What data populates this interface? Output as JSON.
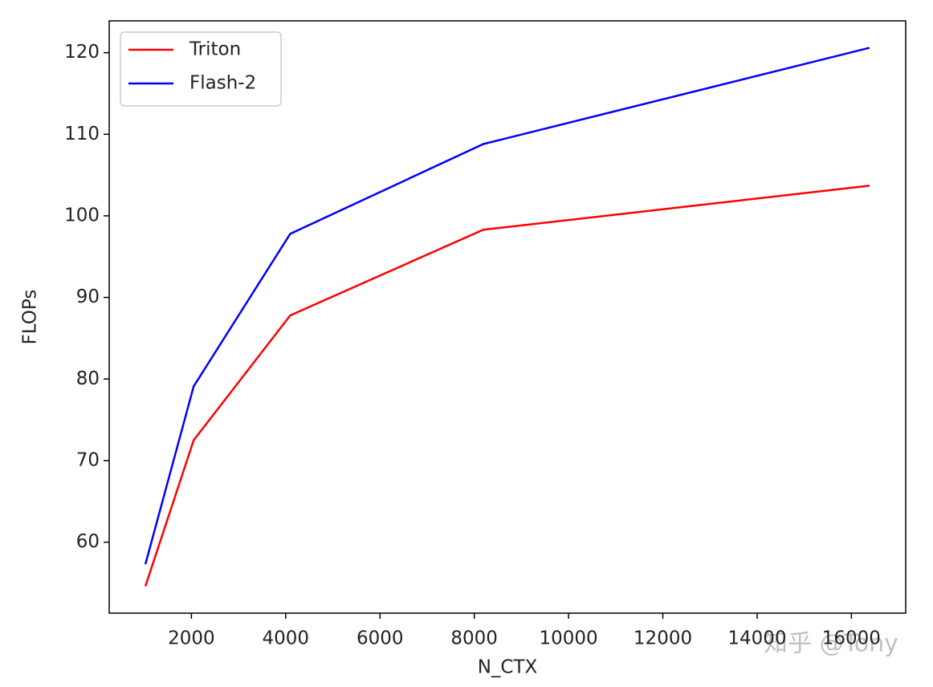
{
  "chart_data": {
    "type": "line",
    "x_label": "N_CTX",
    "y_label": "FLOPs",
    "x": [
      1024,
      2048,
      4096,
      8192,
      16384
    ],
    "series": [
      {
        "name": "Triton",
        "color": "#ff0000",
        "values": [
          54.6,
          72.5,
          87.8,
          98.3,
          103.7
        ]
      },
      {
        "name": "Flash-2",
        "color": "#0000ff",
        "values": [
          57.3,
          79.1,
          97.8,
          108.8,
          120.6
        ]
      }
    ],
    "xlim": [
      256,
      17152
    ],
    "xticks": [
      2000,
      4000,
      6000,
      8000,
      10000,
      12000,
      14000,
      16000
    ],
    "ylim": [
      51.3,
      123.9
    ],
    "yticks": [
      60,
      70,
      80,
      90,
      100,
      110,
      120
    ],
    "legend": "upper left",
    "grid": false,
    "watermark": "知乎 @Tony"
  }
}
